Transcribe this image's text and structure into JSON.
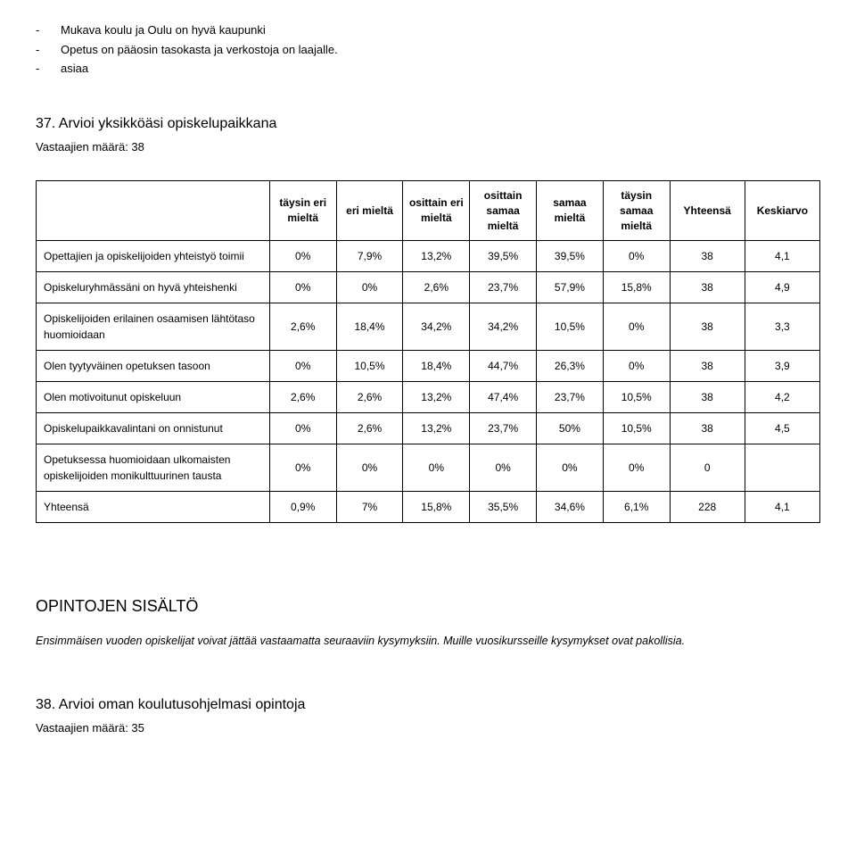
{
  "bullets": {
    "items": [
      "Mukava koulu ja Oulu on hyvä kaupunki",
      "Opetus on pääosin tasokasta ja verkostoja on laajalle.",
      "asiaa"
    ]
  },
  "q37": {
    "heading": "37. Arvioi yksikköäsi opiskelupaikkana",
    "subline": "Vastaajien määrä: 38",
    "columns": [
      "täysin eri mieltä",
      "eri mieltä",
      "osittain eri mieltä",
      "osittain samaa mieltä",
      "samaa mieltä",
      "täysin samaa mieltä",
      "Yhteensä",
      "Keskiarvo"
    ],
    "rows": [
      {
        "label": "Opettajien ja opiskelijoiden yhteistyö toimii",
        "cells": [
          "0%",
          "7,9%",
          "13,2%",
          "39,5%",
          "39,5%",
          "0%",
          "38",
          "4,1"
        ]
      },
      {
        "label": "Opiskeluryhmässäni on hyvä yhteishenki",
        "cells": [
          "0%",
          "0%",
          "2,6%",
          "23,7%",
          "57,9%",
          "15,8%",
          "38",
          "4,9"
        ]
      },
      {
        "label": "Opiskelijoiden erilainen osaamisen lähtötaso huomioidaan",
        "cells": [
          "2,6%",
          "18,4%",
          "34,2%",
          "34,2%",
          "10,5%",
          "0%",
          "38",
          "3,3"
        ]
      },
      {
        "label": "Olen tyytyväinen opetuksen tasoon",
        "cells": [
          "0%",
          "10,5%",
          "18,4%",
          "44,7%",
          "26,3%",
          "0%",
          "38",
          "3,9"
        ]
      },
      {
        "label": "Olen motivoitunut opiskeluun",
        "cells": [
          "2,6%",
          "2,6%",
          "13,2%",
          "47,4%",
          "23,7%",
          "10,5%",
          "38",
          "4,2"
        ]
      },
      {
        "label": "Opiskelupaikkavalintani on onnistunut",
        "cells": [
          "0%",
          "2,6%",
          "13,2%",
          "23,7%",
          "50%",
          "10,5%",
          "38",
          "4,5"
        ]
      },
      {
        "label": "Opetuksessa huomioidaan ulkomaisten opiskelijoiden monikulttuurinen tausta",
        "cells": [
          "0%",
          "0%",
          "0%",
          "0%",
          "0%",
          "0%",
          "0",
          ""
        ]
      },
      {
        "label": "Yhteensä",
        "cells": [
          "0,9%",
          "7%",
          "15,8%",
          "35,5%",
          "34,6%",
          "6,1%",
          "228",
          "4,1"
        ]
      }
    ]
  },
  "section": {
    "title": "OPINTOJEN SISÄLTÖ",
    "note": "Ensimmäisen vuoden opiskelijat voivat jättää vastaamatta seuraaviin kysymyksiin. Muille vuosikursseille kysymykset ovat pakollisia."
  },
  "q38": {
    "heading": "38. Arvioi oman koulutusohjelmasi opintoja",
    "subline": "Vastaajien määrä: 35"
  }
}
